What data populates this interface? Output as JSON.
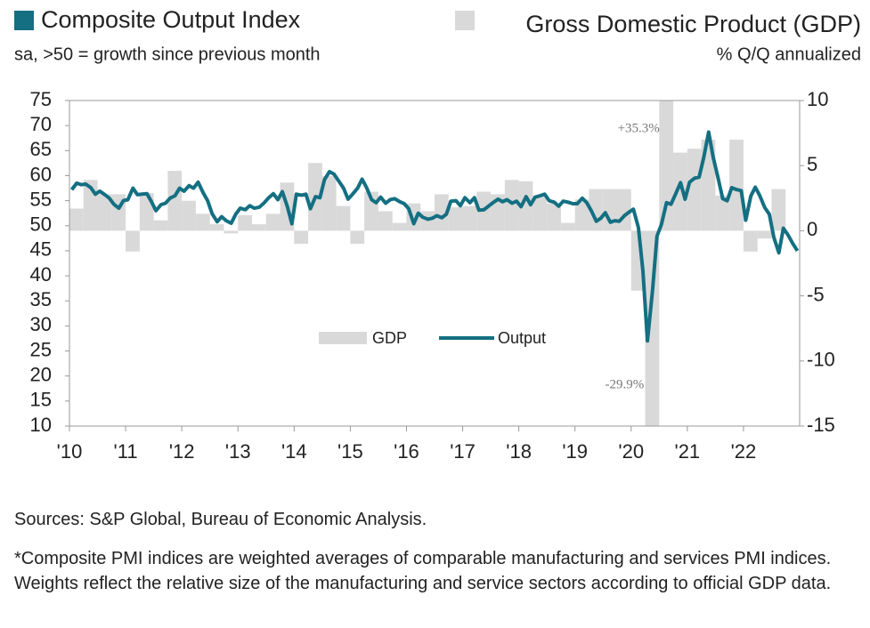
{
  "chart_data": {
    "type": "bar_line",
    "y_title": "Composite Output Index",
    "y_subtitle": "sa, >50 = growth since previous month",
    "y2_title": "Gross Domestic Product (GDP)",
    "y2_subtitle": "% Q/Q annualized",
    "notes": [
      "Sources: S&P Global, Bureau of Economic Analysis.",
      "*Composite PMI indices are weighted averages of comparable manufacturing and services PMI indices. Weights reflect the relative size of the manufacturing and service sectors according to official GDP data."
    ],
    "xlim": [
      2010,
      2023
    ],
    "xticks": [
      {
        "value": 2010,
        "label": "'10"
      },
      {
        "value": 2011,
        "label": "'11"
      },
      {
        "value": 2012,
        "label": "'12"
      },
      {
        "value": 2013,
        "label": "'13"
      },
      {
        "value": 2014,
        "label": "'14"
      },
      {
        "value": 2015,
        "label": "'15"
      },
      {
        "value": 2016,
        "label": "'16"
      },
      {
        "value": 2017,
        "label": "'17"
      },
      {
        "value": 2018,
        "label": "'18"
      },
      {
        "value": 2019,
        "label": "'19"
      },
      {
        "value": 2020,
        "label": "'20"
      },
      {
        "value": 2021,
        "label": "'21"
      },
      {
        "value": 2022,
        "label": "'22"
      }
    ],
    "ylim": [
      10,
      75
    ],
    "yticks": [
      10,
      15,
      20,
      25,
      30,
      35,
      40,
      45,
      50,
      55,
      60,
      65,
      70,
      75
    ],
    "y2lim": [
      -15,
      10
    ],
    "y2ticks": [
      -15,
      -10,
      -5,
      0,
      5,
      10
    ],
    "series": [
      {
        "name": "GDP",
        "type": "bar",
        "axis": "y2",
        "color": "#d9d9d9",
        "x": [
          2010.125,
          2010.375,
          2010.625,
          2010.875,
          2011.125,
          2011.375,
          2011.625,
          2011.875,
          2012.125,
          2012.375,
          2012.625,
          2012.875,
          2013.125,
          2013.375,
          2013.625,
          2013.875,
          2014.125,
          2014.375,
          2014.625,
          2014.875,
          2015.125,
          2015.375,
          2015.625,
          2015.875,
          2016.125,
          2016.375,
          2016.625,
          2016.875,
          2017.125,
          2017.375,
          2017.625,
          2017.875,
          2018.125,
          2018.375,
          2018.625,
          2018.875,
          2019.125,
          2019.375,
          2019.625,
          2019.875,
          2020.125,
          2020.375,
          2020.625,
          2020.875,
          2021.125,
          2021.375,
          2021.625,
          2021.875,
          2022.125,
          2022.375,
          2022.625
        ],
        "values": [
          1.7,
          3.9,
          2.8,
          2.8,
          -1.6,
          2.9,
          0.8,
          4.6,
          2.3,
          1.3,
          0.5,
          -0.2,
          1.2,
          0.5,
          1.3,
          3.7,
          -1.0,
          5.2,
          4.2,
          1.9,
          -1.0,
          3.0,
          1.5,
          0.6,
          2.1,
          1.5,
          2.8,
          1.8,
          1.9,
          3.0,
          2.8,
          3.9,
          3.8,
          2.7,
          2.1,
          0.6,
          2.4,
          3.2,
          3.2,
          3.2,
          -4.6,
          -29.9,
          35.3,
          6.0,
          6.3,
          7.0,
          2.7,
          7.0,
          -1.6,
          -0.6,
          3.2
        ],
        "value_labels": [
          null,
          null,
          null,
          null,
          null,
          null,
          null,
          null,
          null,
          null,
          null,
          null,
          null,
          null,
          null,
          null,
          null,
          null,
          null,
          null,
          null,
          null,
          null,
          null,
          null,
          null,
          null,
          null,
          null,
          null,
          null,
          null,
          null,
          null,
          null,
          null,
          null,
          null,
          null,
          null,
          null,
          "-29.9%",
          "+35.3%",
          null,
          null,
          null,
          null,
          null,
          null,
          null,
          null
        ]
      },
      {
        "name": "Output",
        "type": "line",
        "color": "#146f82",
        "x": [
          2010.04,
          2010.13,
          2010.21,
          2010.29,
          2010.38,
          2010.46,
          2010.54,
          2010.63,
          2010.71,
          2010.79,
          2010.88,
          2010.96,
          2011.04,
          2011.13,
          2011.21,
          2011.29,
          2011.38,
          2011.46,
          2011.54,
          2011.63,
          2011.71,
          2011.79,
          2011.88,
          2011.96,
          2012.04,
          2012.13,
          2012.21,
          2012.29,
          2012.38,
          2012.46,
          2012.54,
          2012.63,
          2012.71,
          2012.79,
          2012.88,
          2012.96,
          2013.04,
          2013.13,
          2013.21,
          2013.29,
          2013.38,
          2013.46,
          2013.54,
          2013.63,
          2013.71,
          2013.79,
          2013.88,
          2013.96,
          2014.04,
          2014.13,
          2014.21,
          2014.29,
          2014.38,
          2014.46,
          2014.54,
          2014.63,
          2014.71,
          2014.79,
          2014.88,
          2014.96,
          2015.04,
          2015.13,
          2015.21,
          2015.29,
          2015.38,
          2015.46,
          2015.54,
          2015.63,
          2015.71,
          2015.79,
          2015.88,
          2015.96,
          2016.04,
          2016.13,
          2016.21,
          2016.29,
          2016.38,
          2016.46,
          2016.54,
          2016.63,
          2016.71,
          2016.79,
          2016.88,
          2016.96,
          2017.04,
          2017.13,
          2017.21,
          2017.29,
          2017.38,
          2017.46,
          2017.54,
          2017.63,
          2017.71,
          2017.79,
          2017.88,
          2017.96,
          2018.04,
          2018.13,
          2018.21,
          2018.29,
          2018.38,
          2018.46,
          2018.54,
          2018.63,
          2018.71,
          2018.79,
          2018.88,
          2018.96,
          2019.04,
          2019.13,
          2019.21,
          2019.29,
          2019.38,
          2019.46,
          2019.54,
          2019.63,
          2019.71,
          2019.79,
          2019.88,
          2019.96,
          2020.04,
          2020.13,
          2020.21,
          2020.29,
          2020.38,
          2020.46,
          2020.54,
          2020.63,
          2020.71,
          2020.79,
          2020.88,
          2020.96,
          2021.04,
          2021.13,
          2021.21,
          2021.29,
          2021.38,
          2021.46,
          2021.54,
          2021.63,
          2021.71,
          2021.79,
          2021.88,
          2021.96,
          2022.04,
          2022.13,
          2022.21,
          2022.29,
          2022.38,
          2022.46,
          2022.54,
          2022.63,
          2022.71,
          2022.79,
          2022.88,
          2022.96
        ],
        "values": [
          57.2,
          58.5,
          58.2,
          58.3,
          57.6,
          56.3,
          56.9,
          56.2,
          55.5,
          54.3,
          53.5,
          55.0,
          55.2,
          57.5,
          56.2,
          56.3,
          56.4,
          54.8,
          53.0,
          54.2,
          54.5,
          55.5,
          56.0,
          57.5,
          56.9,
          58.0,
          57.5,
          58.7,
          56.6,
          55.0,
          52.4,
          50.8,
          51.8,
          51.0,
          50.5,
          52.3,
          53.5,
          53.2,
          54.0,
          53.5,
          53.7,
          54.5,
          55.5,
          56.4,
          55.2,
          56.8,
          53.8,
          50.4,
          56.3,
          56.1,
          56.3,
          53.4,
          55.8,
          55.6,
          59.2,
          60.8,
          60.3,
          59.0,
          57.5,
          55.3,
          56.3,
          57.5,
          59.3,
          57.6,
          55.2,
          54.6,
          55.7,
          54.5,
          55.2,
          55.4,
          54.8,
          54.4,
          53.4,
          50.4,
          52.5,
          51.7,
          51.3,
          51.5,
          52.0,
          51.6,
          52.3,
          54.9,
          55.0,
          54.0,
          55.6,
          54.6,
          55.6,
          53.1,
          53.2,
          53.9,
          54.6,
          55.3,
          54.8,
          55.2,
          54.5,
          54.9,
          53.8,
          55.8,
          54.2,
          55.7,
          56.0,
          56.3,
          55.0,
          54.7,
          53.9,
          54.9,
          54.7,
          54.4,
          54.4,
          55.5,
          54.6,
          53.0,
          50.9,
          51.5,
          52.6,
          50.7,
          51.0,
          50.9,
          52.0,
          52.7,
          53.3,
          49.6,
          40.9,
          27.0,
          37.0,
          47.9,
          50.3,
          54.6,
          54.3,
          56.3,
          58.6,
          55.3,
          58.7,
          59.5,
          59.7,
          63.5,
          68.7,
          63.7,
          59.9,
          55.4,
          55.0,
          57.6,
          57.2,
          57.0,
          51.1,
          55.9,
          57.7,
          56.0,
          53.6,
          52.3,
          47.7,
          44.6,
          49.5,
          48.2,
          46.4,
          45.0
        ]
      }
    ]
  }
}
